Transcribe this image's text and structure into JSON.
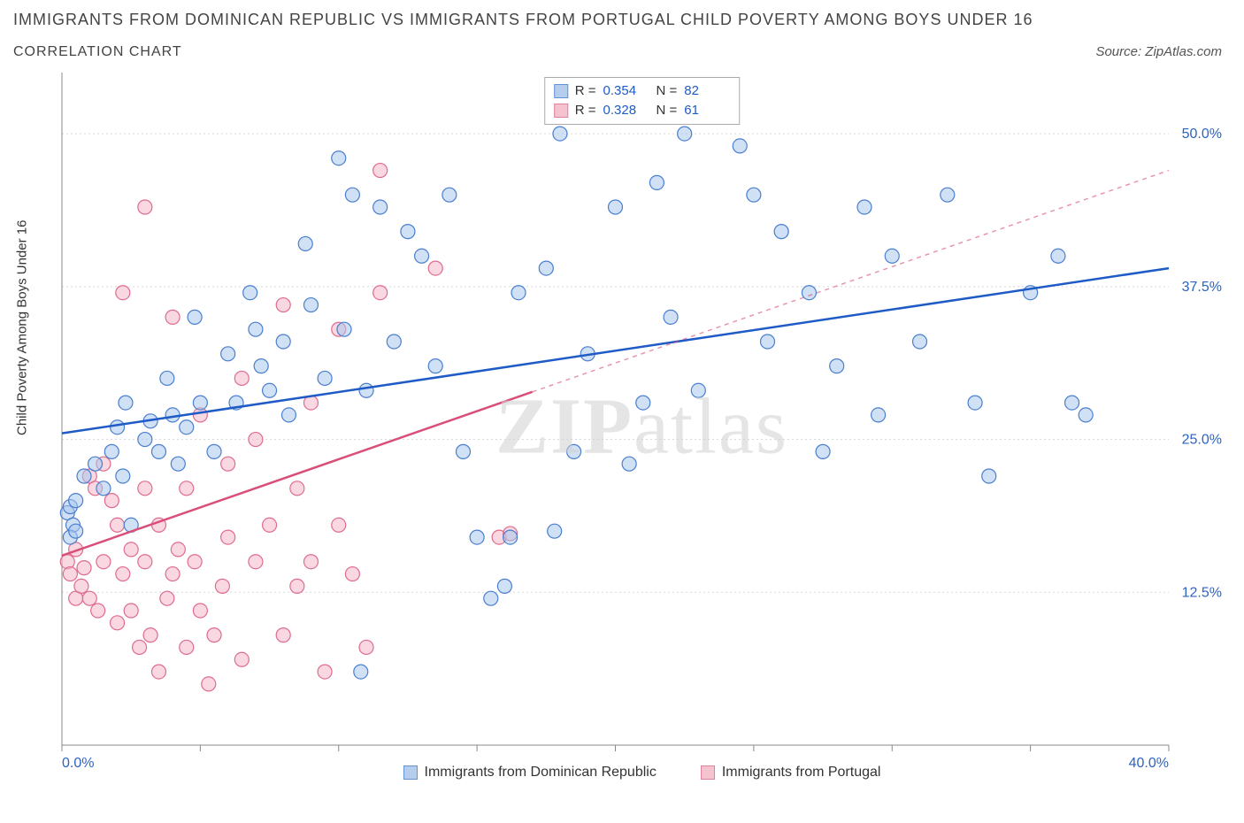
{
  "title_main": "IMMIGRANTS FROM DOMINICAN REPUBLIC VS IMMIGRANTS FROM PORTUGAL CHILD POVERTY AMONG BOYS UNDER 16",
  "title_sub": "CORRELATION CHART",
  "source_label": "Source: ZipAtlas.com",
  "y_axis_label": "Child Poverty Among Boys Under 16",
  "watermark_bold": "ZIP",
  "watermark_light": "atlas",
  "chart": {
    "type": "scatter",
    "xlim": [
      0,
      40
    ],
    "ylim": [
      0,
      55
    ],
    "x_ticks": [
      0,
      5,
      10,
      15,
      20,
      25,
      30,
      35,
      40
    ],
    "x_tick_labels": {
      "0": "0.0%",
      "40": "40.0%"
    },
    "y_ticks": [
      12.5,
      25.0,
      37.5,
      50.0
    ],
    "y_tick_labels": [
      "12.5%",
      "25.0%",
      "37.5%",
      "50.0%"
    ],
    "grid_color": "#d9d9d9",
    "axis_color": "#888888",
    "tick_label_color": "#2b64c4",
    "background_color": "#ffffff",
    "marker_radius": 8,
    "marker_stroke_width": 1.2,
    "trend_line_width": 2.5,
    "trend_dash_width": 1.5,
    "series": [
      {
        "name": "Immigrants from Dominican Republic",
        "fill": "#a9c6ec",
        "stroke": "#4a7fd0",
        "fill_opacity": 0.55,
        "R": "0.354",
        "N": "82",
        "trend": {
          "x1": 0,
          "y1": 25.5,
          "x2": 40,
          "y2": 39.0,
          "solid_until_x": 40,
          "color": "#1e5bc6"
        },
        "points": [
          [
            0.2,
            19
          ],
          [
            0.3,
            19.5
          ],
          [
            0.5,
            20
          ],
          [
            0.4,
            18
          ],
          [
            0.3,
            17
          ],
          [
            0.5,
            17.5
          ],
          [
            0.8,
            22
          ],
          [
            1.2,
            23
          ],
          [
            1.5,
            21
          ],
          [
            1.8,
            24
          ],
          [
            2.0,
            26
          ],
          [
            2.2,
            22
          ],
          [
            2.5,
            18
          ],
          [
            2.3,
            28
          ],
          [
            3.0,
            25
          ],
          [
            3.2,
            26.5
          ],
          [
            3.5,
            24
          ],
          [
            3.8,
            30
          ],
          [
            4.0,
            27
          ],
          [
            4.5,
            26
          ],
          [
            5.0,
            28
          ],
          [
            4.2,
            23
          ],
          [
            4.8,
            35
          ],
          [
            5.5,
            24
          ],
          [
            6.0,
            32
          ],
          [
            6.3,
            28
          ],
          [
            6.8,
            37
          ],
          [
            7.0,
            34
          ],
          [
            7.2,
            31
          ],
          [
            7.5,
            29
          ],
          [
            8.0,
            33
          ],
          [
            8.2,
            27
          ],
          [
            8.8,
            41
          ],
          [
            9.0,
            36
          ],
          [
            9.5,
            30
          ],
          [
            10.0,
            48
          ],
          [
            10.2,
            34
          ],
          [
            10.5,
            45
          ],
          [
            11.0,
            29
          ],
          [
            11.5,
            44
          ],
          [
            12.0,
            33
          ],
          [
            12.5,
            42
          ],
          [
            13.0,
            40
          ],
          [
            13.5,
            31
          ],
          [
            14.0,
            45
          ],
          [
            14.5,
            24
          ],
          [
            10.8,
            6
          ],
          [
            15.0,
            17
          ],
          [
            15.5,
            12
          ],
          [
            16.0,
            13
          ],
          [
            16.5,
            37
          ],
          [
            17.5,
            39
          ],
          [
            16.2,
            17
          ],
          [
            17.8,
            17.5
          ],
          [
            18.0,
            50
          ],
          [
            18.5,
            24
          ],
          [
            19.0,
            32
          ],
          [
            20.0,
            44
          ],
          [
            20.5,
            23
          ],
          [
            21.0,
            28
          ],
          [
            21.5,
            46
          ],
          [
            22.0,
            35
          ],
          [
            22.5,
            50
          ],
          [
            23.0,
            29
          ],
          [
            24.5,
            49
          ],
          [
            25.0,
            45
          ],
          [
            25.5,
            33
          ],
          [
            26.0,
            42
          ],
          [
            27.0,
            37
          ],
          [
            27.5,
            24
          ],
          [
            28.0,
            31
          ],
          [
            29.0,
            44
          ],
          [
            29.5,
            27
          ],
          [
            30.0,
            40
          ],
          [
            31.0,
            33
          ],
          [
            32.0,
            45
          ],
          [
            33.0,
            28
          ],
          [
            33.5,
            22
          ],
          [
            35.0,
            37
          ],
          [
            36.0,
            40
          ],
          [
            36.5,
            28
          ],
          [
            37.0,
            27
          ]
        ]
      },
      {
        "name": "Immigrants from Portugal",
        "fill": "#f4b8c8",
        "stroke": "#e06b8f",
        "fill_opacity": 0.55,
        "R": "0.328",
        "N": "61",
        "trend": {
          "x1": 0,
          "y1": 15.5,
          "x2": 40,
          "y2": 47.0,
          "solid_until_x": 17,
          "color": "#d94f78"
        },
        "points": [
          [
            0.2,
            15
          ],
          [
            0.3,
            14
          ],
          [
            0.5,
            12
          ],
          [
            0.5,
            16
          ],
          [
            0.7,
            13
          ],
          [
            0.8,
            14.5
          ],
          [
            1.0,
            22
          ],
          [
            1.0,
            12
          ],
          [
            1.2,
            21
          ],
          [
            1.3,
            11
          ],
          [
            1.5,
            15
          ],
          [
            1.8,
            20
          ],
          [
            1.5,
            23
          ],
          [
            2.0,
            10
          ],
          [
            2.0,
            18
          ],
          [
            2.2,
            37
          ],
          [
            2.2,
            14
          ],
          [
            2.5,
            11
          ],
          [
            2.5,
            16
          ],
          [
            2.8,
            8
          ],
          [
            3.0,
            44
          ],
          [
            3.0,
            15
          ],
          [
            3.0,
            21
          ],
          [
            3.2,
            9
          ],
          [
            3.5,
            18
          ],
          [
            3.5,
            6
          ],
          [
            3.8,
            12
          ],
          [
            4.0,
            35
          ],
          [
            4.0,
            14
          ],
          [
            4.2,
            16
          ],
          [
            4.5,
            8
          ],
          [
            4.5,
            21
          ],
          [
            4.8,
            15
          ],
          [
            5.0,
            11
          ],
          [
            5.0,
            27
          ],
          [
            5.3,
            5
          ],
          [
            5.5,
            9
          ],
          [
            5.8,
            13
          ],
          [
            6.0,
            17
          ],
          [
            6.0,
            23
          ],
          [
            6.5,
            7
          ],
          [
            6.5,
            30
          ],
          [
            7.0,
            15
          ],
          [
            7.0,
            25
          ],
          [
            7.5,
            18
          ],
          [
            8.0,
            9
          ],
          [
            8.0,
            36
          ],
          [
            8.5,
            13
          ],
          [
            8.5,
            21
          ],
          [
            9.0,
            15
          ],
          [
            9.0,
            28
          ],
          [
            9.5,
            6
          ],
          [
            10.0,
            34
          ],
          [
            10.0,
            18
          ],
          [
            10.5,
            14
          ],
          [
            11.0,
            8
          ],
          [
            11.5,
            37
          ],
          [
            11.5,
            47
          ],
          [
            13.5,
            39
          ],
          [
            15.8,
            17
          ],
          [
            16.2,
            17.3
          ]
        ]
      }
    ]
  },
  "legend_bottom": {
    "series1_label": "Immigrants from Dominican Republic",
    "series2_label": "Immigrants from Portugal"
  }
}
